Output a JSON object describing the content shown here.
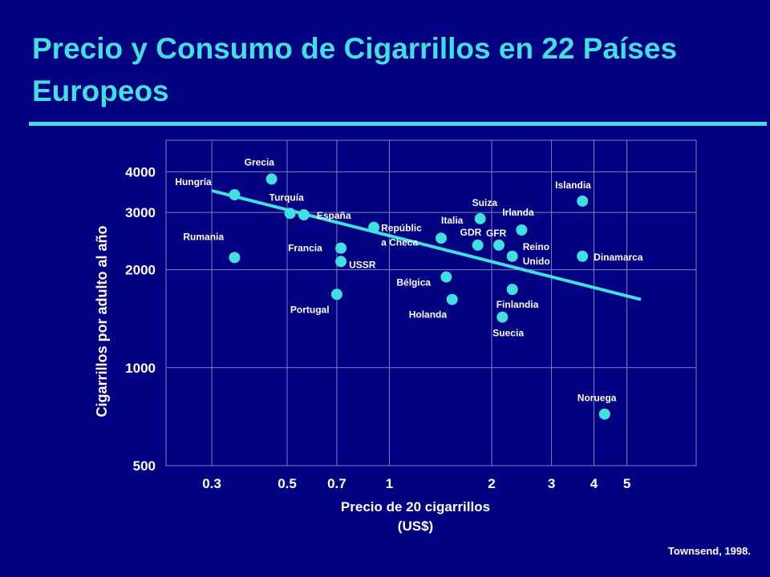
{
  "title": "Precio y Consumo de Cigarrillos en 22 Países Europeos",
  "source": "Townsend, 1998.",
  "colors": {
    "background": "#000080",
    "accent": "#40e0e0",
    "grid": "#8080c0",
    "text": "#ffffff"
  },
  "chart_data": {
    "type": "scatter",
    "title": "",
    "xlabel": "Precio de 20 cigarrillos\n(US$)",
    "ylabel": "Cigarrillos por adulto al año",
    "xscale": "log",
    "yscale": "log",
    "xlim": [
      0.22,
      8.0
    ],
    "ylim": [
      500,
      5000
    ],
    "xticks": [
      0.3,
      0.5,
      0.7,
      1,
      2,
      3,
      4,
      5
    ],
    "xtick_labels": [
      "0.3",
      "0.5",
      "0.7",
      "1",
      "2",
      "3",
      "4",
      "5"
    ],
    "yticks": [
      500,
      1000,
      2000,
      3000,
      4000
    ],
    "ytick_labels": [
      "500",
      "1000",
      "2000",
      "3000",
      "4000"
    ],
    "grid": true,
    "points": [
      {
        "label": "Hungría",
        "x": 0.35,
        "y": 3400
      },
      {
        "label": "Rumania",
        "x": 0.35,
        "y": 2180
      },
      {
        "label": "Grecia",
        "x": 0.45,
        "y": 3800
      },
      {
        "label": "Turquía",
        "x": 0.51,
        "y": 2980
      },
      {
        "label": "España",
        "x": 0.56,
        "y": 2950
      },
      {
        "label": "Francia",
        "x": 0.72,
        "y": 2330
      },
      {
        "label": "USSR",
        "x": 0.72,
        "y": 2120
      },
      {
        "label": "Portugal",
        "x": 0.7,
        "y": 1680
      },
      {
        "label": "Repúblic a Checa",
        "x": 0.9,
        "y": 2700
      },
      {
        "label": "Italia",
        "x": 1.42,
        "y": 2500
      },
      {
        "label": "Bélgica",
        "x": 1.47,
        "y": 1900
      },
      {
        "label": "Holanda",
        "x": 1.53,
        "y": 1620
      },
      {
        "label": "Suiza",
        "x": 1.85,
        "y": 2870
      },
      {
        "label": "GDR",
        "x": 1.82,
        "y": 2380
      },
      {
        "label": "GFR",
        "x": 2.1,
        "y": 2380
      },
      {
        "label": "Suecia",
        "x": 2.15,
        "y": 1430
      },
      {
        "label": "Irlanda",
        "x": 2.45,
        "y": 2650
      },
      {
        "label": "Reino Unido",
        "x": 2.3,
        "y": 2200
      },
      {
        "label": "Finlandia",
        "x": 2.3,
        "y": 1740
      },
      {
        "label": "Islandia",
        "x": 3.7,
        "y": 3250
      },
      {
        "label": "Dinamarca",
        "x": 3.7,
        "y": 2200
      },
      {
        "label": "Noruega",
        "x": 4.3,
        "y": 720
      }
    ],
    "trendline": [
      {
        "x": 0.3,
        "y": 3500
      },
      {
        "x": 5.5,
        "y": 1620
      }
    ]
  }
}
